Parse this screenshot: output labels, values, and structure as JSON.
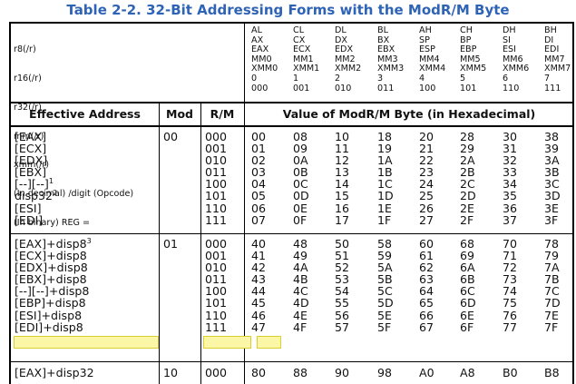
{
  "title": "Table 2-2.  32-Bit Addressing Forms with the ModR/M Byte",
  "header_left": [
    "r8(/r)",
    "r16(/r)",
    "r32(/r)",
    "mm(/r)",
    "xmm(/r)",
    "(In decimal) /digit (Opcode)",
    "(In binary) REG ="
  ],
  "reg_columns": [
    [
      "AL",
      "AX",
      "EAX",
      "MM0",
      "XMM0",
      "0",
      "000"
    ],
    [
      "CL",
      "CX",
      "ECX",
      "MM1",
      "XMM1",
      "1",
      "001"
    ],
    [
      "DL",
      "DX",
      "EDX",
      "MM2",
      "XMM2",
      "2",
      "010"
    ],
    [
      "BL",
      "BX",
      "EBX",
      "MM3",
      "XMM3",
      "3",
      "011"
    ],
    [
      "AH",
      "SP",
      "ESP",
      "MM4",
      "XMM4",
      "4",
      "100"
    ],
    [
      "CH",
      "BP",
      "EBP",
      "MM5",
      "XMM5",
      "5",
      "101"
    ],
    [
      "DH",
      "SI",
      "ESI",
      "MM6",
      "XMM6",
      "6",
      "110"
    ],
    [
      "BH",
      "DI",
      "EDI",
      "MM7",
      "XMM7",
      "7",
      "111"
    ]
  ],
  "column_headers": {
    "effective_address": "Effective Address",
    "mod": "Mod",
    "rm": "R/M",
    "value": "Value of ModR/M Byte (in Hexadecimal)"
  },
  "groups": [
    {
      "mod": "00",
      "ea": [
        {
          "t": "[EAX]"
        },
        {
          "t": "[ECX]"
        },
        {
          "t": "[EDX]"
        },
        {
          "t": "[EBX]"
        },
        {
          "t": "[--][--]",
          "sup": "1"
        },
        {
          "t": "disp32",
          "sup": "2"
        },
        {
          "t": "[ESI]"
        },
        {
          "t": "[EDI]"
        }
      ],
      "rm": [
        "000",
        "001",
        "010",
        "011",
        "100",
        "101",
        "110",
        "111"
      ],
      "values": [
        [
          "00",
          "01",
          "02",
          "03",
          "04",
          "05",
          "06",
          "07"
        ],
        [
          "08",
          "09",
          "0A",
          "0B",
          "0C",
          "0D",
          "0E",
          "0F"
        ],
        [
          "10",
          "11",
          "12",
          "13",
          "14",
          "15",
          "16",
          "17"
        ],
        [
          "18",
          "19",
          "1A",
          "1B",
          "1C",
          "1D",
          "1E",
          "1F"
        ],
        [
          "20",
          "21",
          "22",
          "23",
          "24",
          "25",
          "26",
          "27"
        ],
        [
          "28",
          "29",
          "2A",
          "2B",
          "2C",
          "2D",
          "2E",
          "2F"
        ],
        [
          "30",
          "31",
          "32",
          "33",
          "34",
          "35",
          "36",
          "37"
        ],
        [
          "38",
          "39",
          "3A",
          "3B",
          "3C",
          "3D",
          "3E",
          "3F"
        ]
      ]
    },
    {
      "mod": "01",
      "ea": [
        {
          "t": "[EAX]+disp8",
          "sup": "3"
        },
        {
          "t": "[ECX]+disp8"
        },
        {
          "t": "[EDX]+disp8"
        },
        {
          "t": "[EBX]+disp8"
        },
        {
          "t": "[--][--]+disp8"
        },
        {
          "t": "[EBP]+disp8"
        },
        {
          "t": "[ESI]+disp8"
        },
        {
          "t": "[EDI]+disp8"
        }
      ],
      "rm": [
        "000",
        "001",
        "010",
        "011",
        "100",
        "101",
        "110",
        "111"
      ],
      "values": [
        [
          "40",
          "41",
          "42",
          "43",
          "44",
          "45",
          "46",
          "47"
        ],
        [
          "48",
          "49",
          "4A",
          "4B",
          "4C",
          "4D",
          "4E",
          "4F"
        ],
        [
          "50",
          "51",
          "52",
          "53",
          "54",
          "55",
          "56",
          "57"
        ],
        [
          "58",
          "59",
          "5A",
          "5B",
          "5C",
          "5D",
          "5E",
          "5F"
        ],
        [
          "60",
          "61",
          "62",
          "63",
          "64",
          "65",
          "66",
          "67"
        ],
        [
          "68",
          "69",
          "6A",
          "6B",
          "6C",
          "6D",
          "6E",
          "6F"
        ],
        [
          "70",
          "71",
          "72",
          "73",
          "74",
          "75",
          "76",
          "77"
        ],
        [
          "78",
          "79",
          "7A",
          "7B",
          "7C",
          "7D",
          "7E",
          "7F"
        ]
      ]
    },
    {
      "mod": "10",
      "ea": [
        {
          "t": "[EAX]+disp32"
        }
      ],
      "rm": [
        "000"
      ],
      "values": [
        [
          "80"
        ],
        [
          "88"
        ],
        [
          "90"
        ],
        [
          "98"
        ],
        [
          "A0"
        ],
        [
          "A8"
        ],
        [
          "B0"
        ],
        [
          "B8"
        ]
      ]
    }
  ],
  "highlight": {
    "group": 1,
    "row": 5,
    "color": "#fbf7a6"
  }
}
